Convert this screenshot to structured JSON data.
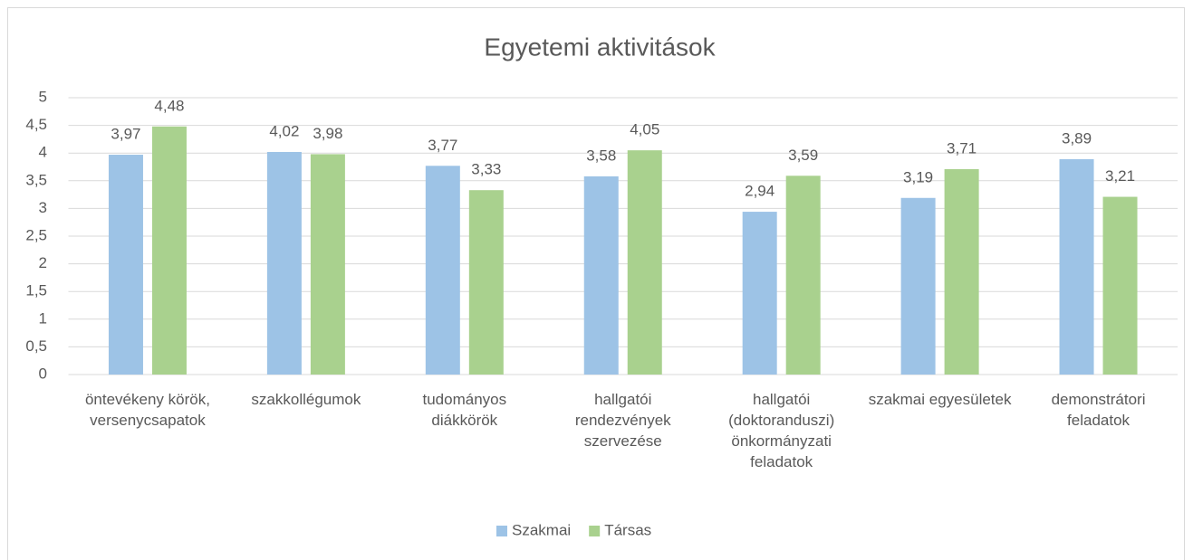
{
  "chart_data": {
    "type": "bar",
    "title": "Egyetemi aktivitások",
    "categories": [
      "öntevékeny körök, versenycsapatok",
      "szakkollégumok",
      "tudományos diákkörök",
      "hallgatói rendezvények szervezése",
      "hallgatói (doktoranduszi) önkormányzati feladatok",
      "szakmai egyesületek",
      "demonstrátori feladatok"
    ],
    "series": [
      {
        "name": "Szakmai",
        "color": "#9dc3e6",
        "values": [
          3.97,
          4.02,
          3.77,
          3.58,
          2.94,
          3.19,
          3.89
        ],
        "value_labels": [
          "3,97",
          "4,02",
          "3,77",
          "3,58",
          "2,94",
          "3,19",
          "3,89"
        ]
      },
      {
        "name": "Társas",
        "color": "#a9d18e",
        "values": [
          4.48,
          3.98,
          3.33,
          4.05,
          3.59,
          3.71,
          3.21
        ],
        "value_labels": [
          "4,48",
          "3,98",
          "3,33",
          "4,05",
          "3,59",
          "3,71",
          "3,21"
        ]
      }
    ],
    "ylim": [
      0,
      5
    ],
    "yticks": [
      0,
      {
        "value": 0.5,
        "label": "0,5"
      },
      1,
      {
        "value": 1.5,
        "label": "1,5"
      },
      2,
      {
        "value": 2.5,
        "label": "2,5"
      },
      3,
      {
        "value": 3.5,
        "label": "3,5"
      },
      4,
      {
        "value": 4.5,
        "label": "4,5"
      },
      5
    ],
    "grid": true,
    "legend": "bottom"
  }
}
